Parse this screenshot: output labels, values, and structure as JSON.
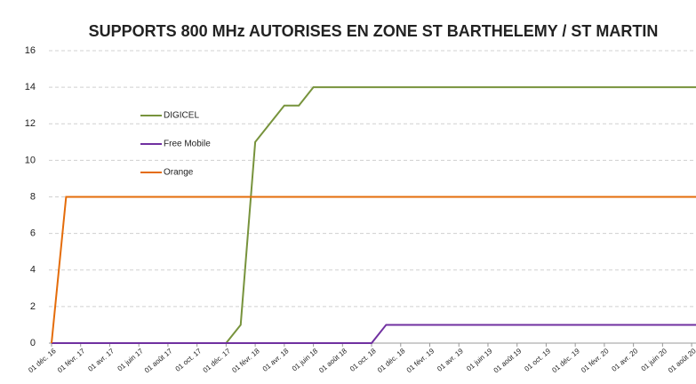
{
  "chart_data": {
    "type": "line",
    "title": "SUPPORTS 800 MHz AUTORISES EN ZONE ST BARTHELEMY / ST MARTIN",
    "xlim": [
      "2016-12-01",
      "2020-08-10"
    ],
    "xticks": [
      {
        "value": "2016-12-01",
        "label": "01 déc. 16"
      },
      {
        "value": "2017-02-01",
        "label": "01 févr. 17"
      },
      {
        "value": "2017-04-01",
        "label": "01 avr. 17"
      },
      {
        "value": "2017-06-01",
        "label": "01 juin 17"
      },
      {
        "value": "2017-08-01",
        "label": "01 août 17"
      },
      {
        "value": "2017-10-01",
        "label": "01 oct. 17"
      },
      {
        "value": "2017-12-01",
        "label": "01 déc. 17"
      },
      {
        "value": "2018-02-01",
        "label": "01 févr. 18"
      },
      {
        "value": "2018-04-01",
        "label": "01 avr. 18"
      },
      {
        "value": "2018-06-01",
        "label": "01 juin 18"
      },
      {
        "value": "2018-08-01",
        "label": "01 août 18"
      },
      {
        "value": "2018-10-01",
        "label": "01 oct. 18"
      },
      {
        "value": "2018-12-01",
        "label": "01 déc. 18"
      },
      {
        "value": "2019-02-01",
        "label": "01 févr. 19"
      },
      {
        "value": "2019-04-01",
        "label": "01 avr. 19"
      },
      {
        "value": "2019-06-01",
        "label": "01 juin 19"
      },
      {
        "value": "2019-08-01",
        "label": "01 août 19"
      },
      {
        "value": "2019-10-01",
        "label": "01 oct. 19"
      },
      {
        "value": "2019-12-01",
        "label": "01 déc. 19"
      },
      {
        "value": "2020-02-01",
        "label": "01 févr. 20"
      },
      {
        "value": "2020-04-01",
        "label": "01 avr. 20"
      },
      {
        "value": "2020-06-01",
        "label": "01 juin 20"
      },
      {
        "value": "2020-08-01",
        "label": "01 août 20"
      }
    ],
    "ylim": [
      0,
      16
    ],
    "yticks": [
      0,
      2,
      4,
      6,
      8,
      10,
      12,
      14,
      16
    ],
    "grid": true,
    "series": [
      {
        "name": "DIGICEL",
        "color": "#77933c",
        "x": [
          "2016-12-01",
          "2017-12-01",
          "2018-01-01",
          "2018-02-01",
          "2018-04-01",
          "2018-05-01",
          "2018-06-01",
          "2020-08-10"
        ],
        "values": [
          0,
          0,
          1,
          11,
          13,
          13,
          14,
          14
        ]
      },
      {
        "name": "Free Mobile",
        "color": "#7030a0",
        "x": [
          "2016-12-01",
          "2018-10-01",
          "2018-11-01",
          "2020-08-10"
        ],
        "values": [
          0,
          0,
          1,
          1
        ]
      },
      {
        "name": "Orange",
        "color": "#e46c0a",
        "x": [
          "2016-12-01",
          "2017-01-01",
          "2020-08-10"
        ],
        "values": [
          0,
          8,
          8
        ]
      }
    ]
  }
}
